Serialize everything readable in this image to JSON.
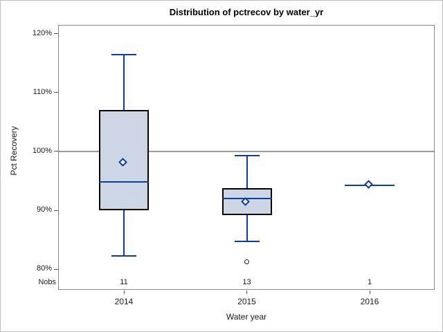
{
  "title": "Distribution of pctrecov by water_yr",
  "y_axis": {
    "label": "Pct Recovery",
    "unit": "%"
  },
  "x_axis": {
    "label": "Water year",
    "categories": [
      "2014",
      "2015",
      "2016"
    ]
  },
  "nobs": {
    "label": "Nobs",
    "values": [
      "11",
      "13",
      "1"
    ]
  },
  "colors": {
    "box_fill": "#ccd6e4",
    "box_border": "#000000",
    "line": "#0b3c9e",
    "refline": "#9b9b9b",
    "plot_border": "#888888",
    "outlier": "#222222",
    "text": "#111111"
  },
  "chart_data": {
    "type": "box",
    "title": "Distribution of pctrecov by water_yr",
    "xlabel": "Water year",
    "ylabel": "Pct Recovery",
    "categories": [
      "2014",
      "2015",
      "2016"
    ],
    "ylim": [
      76.5,
      121.5
    ],
    "yticks": [
      80,
      90,
      100,
      110,
      120
    ],
    "refline": 100,
    "grid": false,
    "legend": "none",
    "groups": [
      {
        "category": "2014",
        "nobs": 11,
        "whisker_low": 82.3,
        "q1": 90.0,
        "median": 94.8,
        "q3": 107.0,
        "whisker_high": 116.5,
        "mean": 98.0,
        "outliers": []
      },
      {
        "category": "2015",
        "nobs": 13,
        "whisker_low": 84.7,
        "q1": 89.2,
        "median": 92.0,
        "q3": 93.8,
        "whisker_high": 99.3,
        "mean": 91.2,
        "outliers": [
          81.2
        ]
      },
      {
        "category": "2016",
        "nobs": 1,
        "whisker_low": 94.2,
        "q1": 94.2,
        "median": 94.2,
        "q3": 94.2,
        "whisker_high": 94.2,
        "mean": 94.2,
        "outliers": []
      }
    ]
  }
}
